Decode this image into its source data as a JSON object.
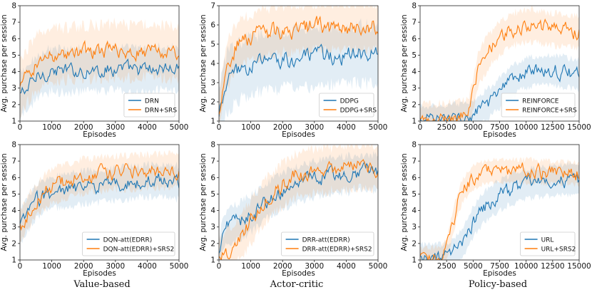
{
  "colors": {
    "drl": "#1f77b4",
    "srs": "#ff7f0e",
    "axis": "#222222"
  },
  "captions": [
    "Value-based",
    "Actor-critic",
    "Policy-based"
  ],
  "chart_data": [
    {
      "type": "line",
      "xlabel": "Episodes",
      "ylabel": "Avg. purchase per session",
      "xlim": [
        0,
        5000
      ],
      "ylim": [
        1,
        8
      ],
      "xticks": [
        0,
        1000,
        2000,
        3000,
        4000,
        5000
      ],
      "yticks": [
        1,
        2,
        3,
        4,
        5,
        6,
        7,
        8
      ],
      "legend": "bottom-right",
      "series": [
        {
          "name": "DRN",
          "color": "#1f77b4",
          "x": [
            0,
            250,
            500,
            750,
            1000,
            1500,
            2000,
            2500,
            3000,
            3500,
            4000,
            4500,
            5000
          ],
          "y": [
            2.6,
            3.0,
            3.6,
            3.9,
            4.1,
            4.0,
            4.1,
            4.1,
            4.2,
            4.1,
            4.1,
            4.2,
            4.1
          ],
          "band": 1.3
        },
        {
          "name": "DRN+SRS",
          "color": "#ff7f0e",
          "x": [
            0,
            250,
            500,
            750,
            1000,
            1500,
            2000,
            2500,
            3000,
            3500,
            4000,
            4500,
            5000
          ],
          "y": [
            3.0,
            3.8,
            4.5,
            4.8,
            5.0,
            5.1,
            5.2,
            5.2,
            5.3,
            5.2,
            5.3,
            5.2,
            5.1
          ],
          "band": 1.6
        }
      ]
    },
    {
      "type": "line",
      "xlabel": "Episodes",
      "ylabel": "Avg. purchase per session",
      "xlim": [
        0,
        5000
      ],
      "ylim": [
        1,
        7
      ],
      "xticks": [
        0,
        1000,
        2000,
        3000,
        4000,
        5000
      ],
      "yticks": [
        1,
        2,
        3,
        4,
        5,
        6,
        7
      ],
      "legend": "bottom-right",
      "series": [
        {
          "name": "DDPG",
          "color": "#1f77b4",
          "x": [
            0,
            100,
            250,
            500,
            750,
            1000,
            1500,
            2000,
            2500,
            3000,
            3500,
            4000,
            4500,
            5000
          ],
          "y": [
            1.1,
            2.0,
            3.0,
            3.4,
            3.7,
            3.9,
            4.1,
            4.2,
            4.3,
            4.3,
            4.4,
            4.4,
            4.5,
            4.4
          ],
          "band": 1.5
        },
        {
          "name": "DDPG+SRS",
          "color": "#ff7f0e",
          "x": [
            0,
            100,
            250,
            500,
            750,
            1000,
            1500,
            2000,
            2500,
            3000,
            3500,
            4000,
            4500,
            5000
          ],
          "y": [
            1.2,
            2.6,
            3.9,
            4.8,
            5.2,
            5.3,
            5.6,
            5.8,
            5.8,
            5.9,
            5.9,
            5.9,
            5.9,
            5.9
          ],
          "band": 1.2
        }
      ]
    },
    {
      "type": "line",
      "xlabel": "Episodes",
      "ylabel": "Avg. purchase per session",
      "xlim": [
        0,
        15000
      ],
      "ylim": [
        1,
        8
      ],
      "xticks": [
        0,
        2500,
        5000,
        7500,
        10000,
        12500,
        15000
      ],
      "yticks": [
        1,
        2,
        3,
        4,
        5,
        6,
        7,
        8
      ],
      "legend": "bottom-right",
      "series": [
        {
          "name": "REINFORCE",
          "color": "#1f77b4",
          "x": [
            0,
            2500,
            4500,
            5500,
            6500,
            7500,
            8500,
            9500,
            10500,
            12000,
            13500,
            15000
          ],
          "y": [
            1.0,
            1.05,
            1.2,
            1.6,
            2.1,
            2.7,
            3.3,
            3.8,
            4.0,
            4.1,
            4.0,
            3.8
          ],
          "band": 0.9
        },
        {
          "name": "REINFORCE+SRS",
          "color": "#ff7f0e",
          "x": [
            0,
            2500,
            4500,
            5000,
            5500,
            6500,
            7500,
            8500,
            9500,
            10500,
            12000,
            13500,
            15000
          ],
          "y": [
            1.0,
            1.1,
            1.3,
            2.6,
            4.2,
            5.3,
            6.0,
            6.5,
            6.7,
            6.8,
            6.6,
            6.5,
            6.4
          ],
          "band": 1.0
        }
      ]
    },
    {
      "type": "line",
      "xlabel": "Episodes",
      "ylabel": "Avg. purchase per session",
      "xlim": [
        0,
        5000
      ],
      "ylim": [
        1,
        8
      ],
      "xticks": [
        0,
        1000,
        2000,
        3000,
        4000,
        5000
      ],
      "yticks": [
        1,
        2,
        3,
        4,
        5,
        6,
        7,
        8
      ],
      "legend": "bottom-right",
      "series": [
        {
          "name": "DQN-att(EDRR)",
          "color": "#1f77b4",
          "x": [
            0,
            250,
            500,
            750,
            1000,
            1500,
            2000,
            2500,
            3000,
            3500,
            4000,
            4500,
            5000
          ],
          "y": [
            3.0,
            3.8,
            4.5,
            4.9,
            5.1,
            5.2,
            5.4,
            5.5,
            5.6,
            5.7,
            5.8,
            5.8,
            5.7
          ],
          "band": 1.0
        },
        {
          "name": "DQN-att(EDRR)+SRS2",
          "color": "#ff7f0e",
          "x": [
            0,
            250,
            500,
            750,
            1000,
            1500,
            2000,
            2500,
            3000,
            3500,
            4000,
            4500,
            5000
          ],
          "y": [
            3.0,
            3.9,
            4.6,
            5.1,
            5.5,
            5.8,
            6.1,
            6.2,
            6.3,
            6.3,
            6.4,
            6.4,
            6.5
          ],
          "band": 1.0
        }
      ]
    },
    {
      "type": "line",
      "xlabel": "Episodes",
      "ylabel": "Avg. purchase per session",
      "xlim": [
        0,
        5000
      ],
      "ylim": [
        1,
        8
      ],
      "xticks": [
        0,
        1000,
        2000,
        3000,
        4000,
        5000
      ],
      "yticks": [
        1,
        2,
        3,
        4,
        5,
        6,
        7,
        8
      ],
      "legend": "bottom-right",
      "series": [
        {
          "name": "DRR-att(EDRR)",
          "color": "#1f77b4",
          "x": [
            0,
            100,
            250,
            500,
            750,
            1000,
            1500,
            2000,
            2500,
            3000,
            3500,
            4000,
            4500,
            5000
          ],
          "y": [
            1.2,
            2.5,
            3.0,
            3.2,
            3.5,
            3.8,
            4.6,
            5.2,
            5.6,
            5.9,
            6.1,
            6.2,
            6.3,
            6.3
          ],
          "band": 1.1
        },
        {
          "name": "DRR-att(EDRR)+SRS2",
          "color": "#ff7f0e",
          "x": [
            0,
            250,
            500,
            750,
            1000,
            1500,
            2000,
            2500,
            3000,
            3500,
            4000,
            4500,
            5000
          ],
          "y": [
            1.0,
            1.5,
            2.0,
            2.6,
            3.3,
            4.7,
            5.6,
            6.2,
            6.4,
            6.5,
            6.6,
            6.7,
            6.6
          ],
          "band": 1.3
        }
      ]
    },
    {
      "type": "line",
      "xlabel": "Episodes",
      "ylabel": "Avg. purchase per session",
      "xlim": [
        0,
        15000
      ],
      "ylim": [
        1,
        8
      ],
      "xticks": [
        0,
        2500,
        5000,
        7500,
        10000,
        12500,
        15000
      ],
      "yticks": [
        1,
        2,
        3,
        4,
        5,
        6,
        7,
        8
      ],
      "legend": "bottom-right",
      "series": [
        {
          "name": "URL",
          "color": "#1f77b4",
          "x": [
            0,
            2000,
            3000,
            4000,
            5000,
            6000,
            7000,
            8000,
            9000,
            10000,
            11000,
            12500,
            14000,
            15000
          ],
          "y": [
            1.0,
            1.05,
            1.3,
            2.0,
            3.3,
            4.2,
            4.7,
            5.1,
            5.4,
            5.6,
            5.7,
            5.8,
            5.9,
            5.9
          ],
          "band": 0.9
        },
        {
          "name": "URL+SRS2",
          "color": "#ff7f0e",
          "x": [
            0,
            2000,
            2500,
            3000,
            3500,
            4000,
            5000,
            6000,
            7000,
            8000,
            10000,
            12500,
            14000,
            15000
          ],
          "y": [
            1.0,
            1.1,
            1.6,
            3.0,
            4.3,
            5.2,
            6.0,
            6.3,
            6.4,
            6.4,
            6.4,
            6.3,
            6.3,
            6.2
          ],
          "band": 0.7
        }
      ]
    }
  ]
}
